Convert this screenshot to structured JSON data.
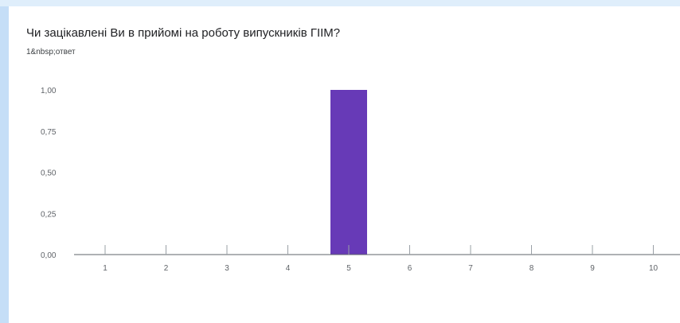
{
  "question_title": "Чи зацікавлені Ви в прийомі на роботу випускників ГІІМ?",
  "response_count": "1&nbsp;ответ",
  "colors": {
    "bar": "#673ab7",
    "axis": "#5f6368",
    "grid": "#e8e8e8"
  },
  "chart_data": {
    "type": "bar",
    "title": "",
    "xlabel": "",
    "ylabel": "",
    "categories": [
      "1",
      "2",
      "3",
      "4",
      "5",
      "6",
      "7",
      "8",
      "9",
      "10"
    ],
    "values": [
      0,
      0,
      0,
      0,
      1,
      0,
      0,
      0,
      0,
      0
    ],
    "ylim": [
      0,
      1
    ],
    "yticks": [
      "0,00",
      "0,25",
      "0,50",
      "0,75",
      "1,00"
    ],
    "grid": false
  }
}
